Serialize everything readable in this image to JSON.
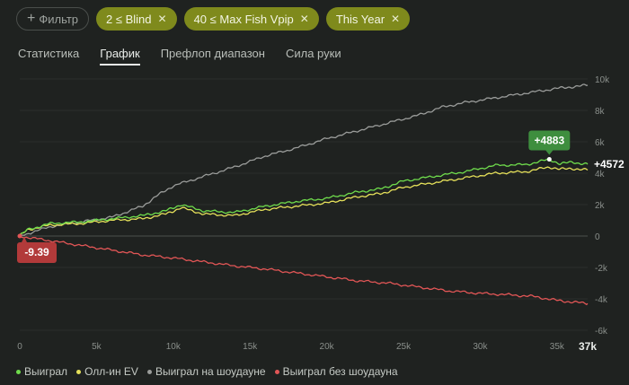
{
  "filters": {
    "add_label": "Фильтр",
    "chips": [
      {
        "label": "2 ≤ Blind"
      },
      {
        "label": "40 ≤ Max Fish Vpip"
      },
      {
        "label": "This Year"
      }
    ]
  },
  "tabs": [
    {
      "label": "Статистика"
    },
    {
      "label": "График"
    },
    {
      "label": "Префлоп диапазон"
    },
    {
      "label": "Сила руки"
    }
  ],
  "chart_data": {
    "type": "line",
    "x_ticks": [
      "0",
      "5k",
      "10k",
      "15k",
      "20k",
      "25k",
      "30k",
      "35k"
    ],
    "x_max_label": "37k",
    "y_ticks": [
      "10k",
      "8k",
      "6k",
      "4k",
      "2k",
      "0",
      "-2k",
      "-4k",
      "-6k"
    ],
    "xlim": [
      0,
      37000
    ],
    "ylim": [
      -6000,
      10000
    ],
    "series": [
      {
        "name": "Выиграл",
        "color": "#6fdc4c",
        "x": [
          0,
          500,
          2000,
          4000,
          6000,
          8000,
          9500,
          10500,
          12000,
          14000,
          16000,
          18000,
          20000,
          22000,
          23500,
          25000,
          27000,
          29000,
          31000,
          33000,
          34500,
          35200,
          36000,
          37000
        ],
        "y": [
          0,
          400,
          800,
          900,
          1100,
          1300,
          1600,
          2000,
          1600,
          1500,
          1900,
          2200,
          2400,
          2800,
          3000,
          3500,
          3800,
          4100,
          4500,
          4550,
          4883,
          4600,
          4700,
          4572
        ]
      },
      {
        "name": "Олл-ин EV",
        "color": "#e5e05a",
        "x": [
          0,
          500,
          2000,
          4000,
          6000,
          8000,
          9500,
          10500,
          12000,
          14000,
          16000,
          18000,
          20000,
          22000,
          23500,
          25000,
          27000,
          29000,
          31000,
          33000,
          34500,
          35200,
          36000,
          37000
        ],
        "y": [
          0,
          400,
          700,
          800,
          1000,
          1100,
          1400,
          1800,
          1400,
          1300,
          1700,
          1900,
          2100,
          2500,
          2700,
          3100,
          3400,
          3700,
          4000,
          4100,
          4400,
          4250,
          4300,
          4200
        ]
      },
      {
        "name": "Выиграл на шоудауне",
        "color": "#9a9c9a",
        "x": [
          0,
          2000,
          4000,
          6000,
          8000,
          9000,
          10000,
          12000,
          14000,
          16000,
          18000,
          20000,
          22000,
          24000,
          26000,
          27500,
          29000,
          31000,
          33000,
          35000,
          36000,
          37000
        ],
        "y": [
          0,
          600,
          900,
          1200,
          1900,
          2600,
          3200,
          3800,
          4400,
          5100,
          5600,
          6200,
          6700,
          7200,
          7700,
          8200,
          8500,
          8800,
          9100,
          9400,
          9500,
          9600
        ]
      },
      {
        "name": "Выиграл без шоудауна",
        "color": "#e25656",
        "x": [
          0,
          2000,
          4000,
          6000,
          8000,
          10000,
          12000,
          14000,
          16000,
          18000,
          20000,
          22000,
          24000,
          26000,
          28000,
          30000,
          32000,
          33500,
          35000,
          36000,
          37000
        ],
        "y": [
          -9.39,
          -300,
          -600,
          -900,
          -1200,
          -1400,
          -1650,
          -1900,
          -2100,
          -2350,
          -2600,
          -2850,
          -3000,
          -3250,
          -3500,
          -3650,
          -3750,
          -3850,
          -4100,
          -4200,
          -4300
        ]
      }
    ],
    "annotations": {
      "start_value": "-9.39",
      "peak_value": "+4883",
      "end_value": "+4572"
    }
  }
}
